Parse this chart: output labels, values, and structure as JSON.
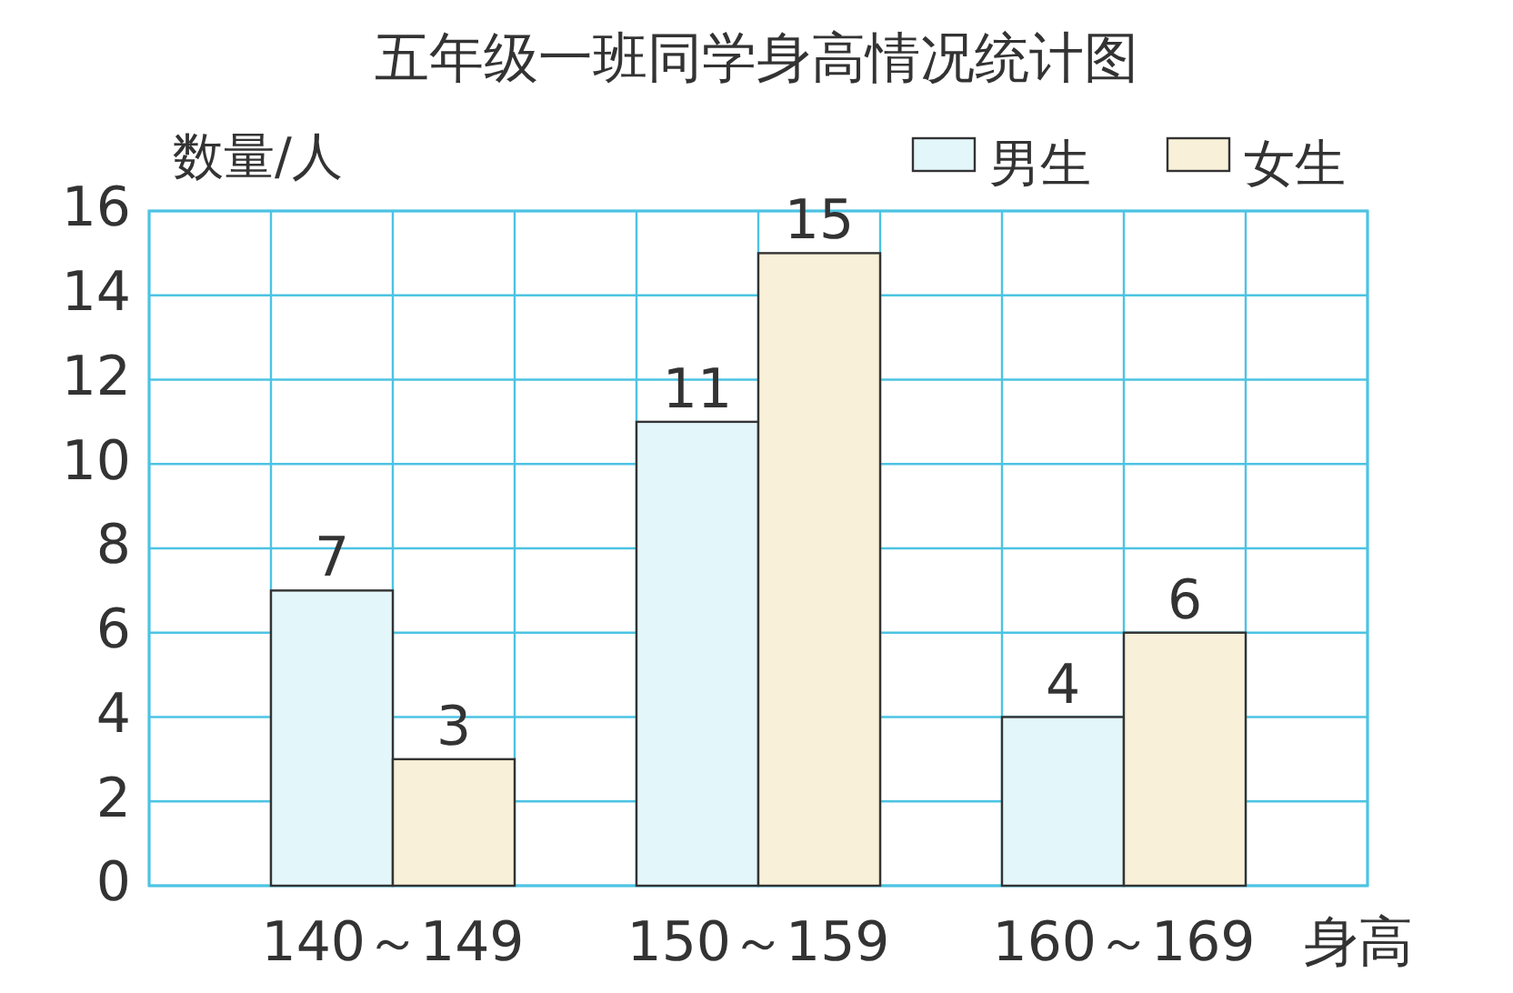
{
  "chart_data": {
    "type": "bar",
    "title": "五年级一班同学身高情况统计图",
    "xlabel": "身高",
    "ylabel": "数量/人",
    "categories": [
      "140～149",
      "150～159",
      "160～169"
    ],
    "series": [
      {
        "name": "男生",
        "color": "#e3f6fa",
        "values": [
          7,
          11,
          4
        ]
      },
      {
        "name": "女生",
        "color": "#f8f0d8",
        "values": [
          3,
          15,
          6
        ]
      }
    ],
    "ylim": [
      0,
      16
    ],
    "yticks": [
      0,
      2,
      4,
      6,
      8,
      10,
      12,
      14,
      16
    ],
    "grid": true,
    "legend": "top right",
    "data_labels": true
  }
}
